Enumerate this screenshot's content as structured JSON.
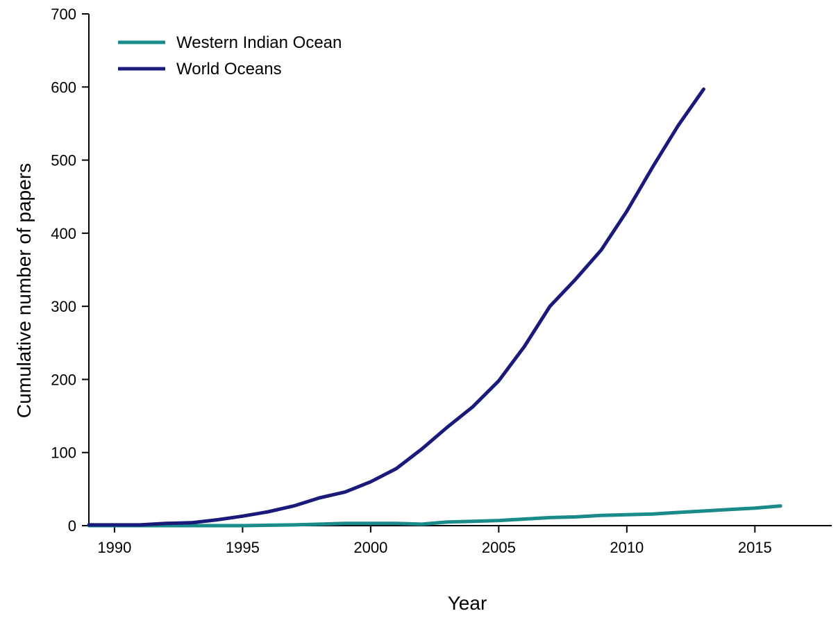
{
  "chart_data": {
    "type": "line",
    "xlabel": "Year",
    "ylabel": "Cumulative number of papers",
    "xlim": [
      1989,
      2018
    ],
    "ylim": [
      0,
      700
    ],
    "xticks": [
      1990,
      1995,
      2000,
      2005,
      2010,
      2015
    ],
    "yticks": [
      0,
      100,
      200,
      300,
      400,
      500,
      600,
      700
    ],
    "legend_position": "top-left",
    "grid": false,
    "series": [
      {
        "name": "Western Indian Ocean",
        "color": "#1a8a8a",
        "x": [
          1989,
          1991,
          1993,
          1995,
          1997,
          1998,
          1999,
          2000,
          2001,
          2002,
          2003,
          2004,
          2005,
          2006,
          2007,
          2008,
          2009,
          2010,
          2011,
          2012,
          2013,
          2014,
          2015,
          2016
        ],
        "y": [
          0,
          0,
          0,
          0,
          1,
          2,
          3,
          3,
          3,
          2,
          5,
          6,
          7,
          9,
          11,
          12,
          14,
          15,
          16,
          18,
          20,
          22,
          24,
          27
        ]
      },
      {
        "name": "World Oceans",
        "color": "#1a1a7a",
        "x": [
          1989,
          1990,
          1991,
          1992,
          1993,
          1994,
          1995,
          1996,
          1997,
          1998,
          1999,
          2000,
          2001,
          2002,
          2003,
          2004,
          2005,
          2006,
          2007,
          2008,
          2009,
          2010,
          2011,
          2012,
          2013
        ],
        "y": [
          1,
          1,
          1,
          3,
          4,
          8,
          13,
          19,
          27,
          38,
          46,
          60,
          78,
          105,
          135,
          163,
          198,
          245,
          300,
          337,
          377,
          430,
          490,
          547,
          597
        ]
      }
    ]
  }
}
